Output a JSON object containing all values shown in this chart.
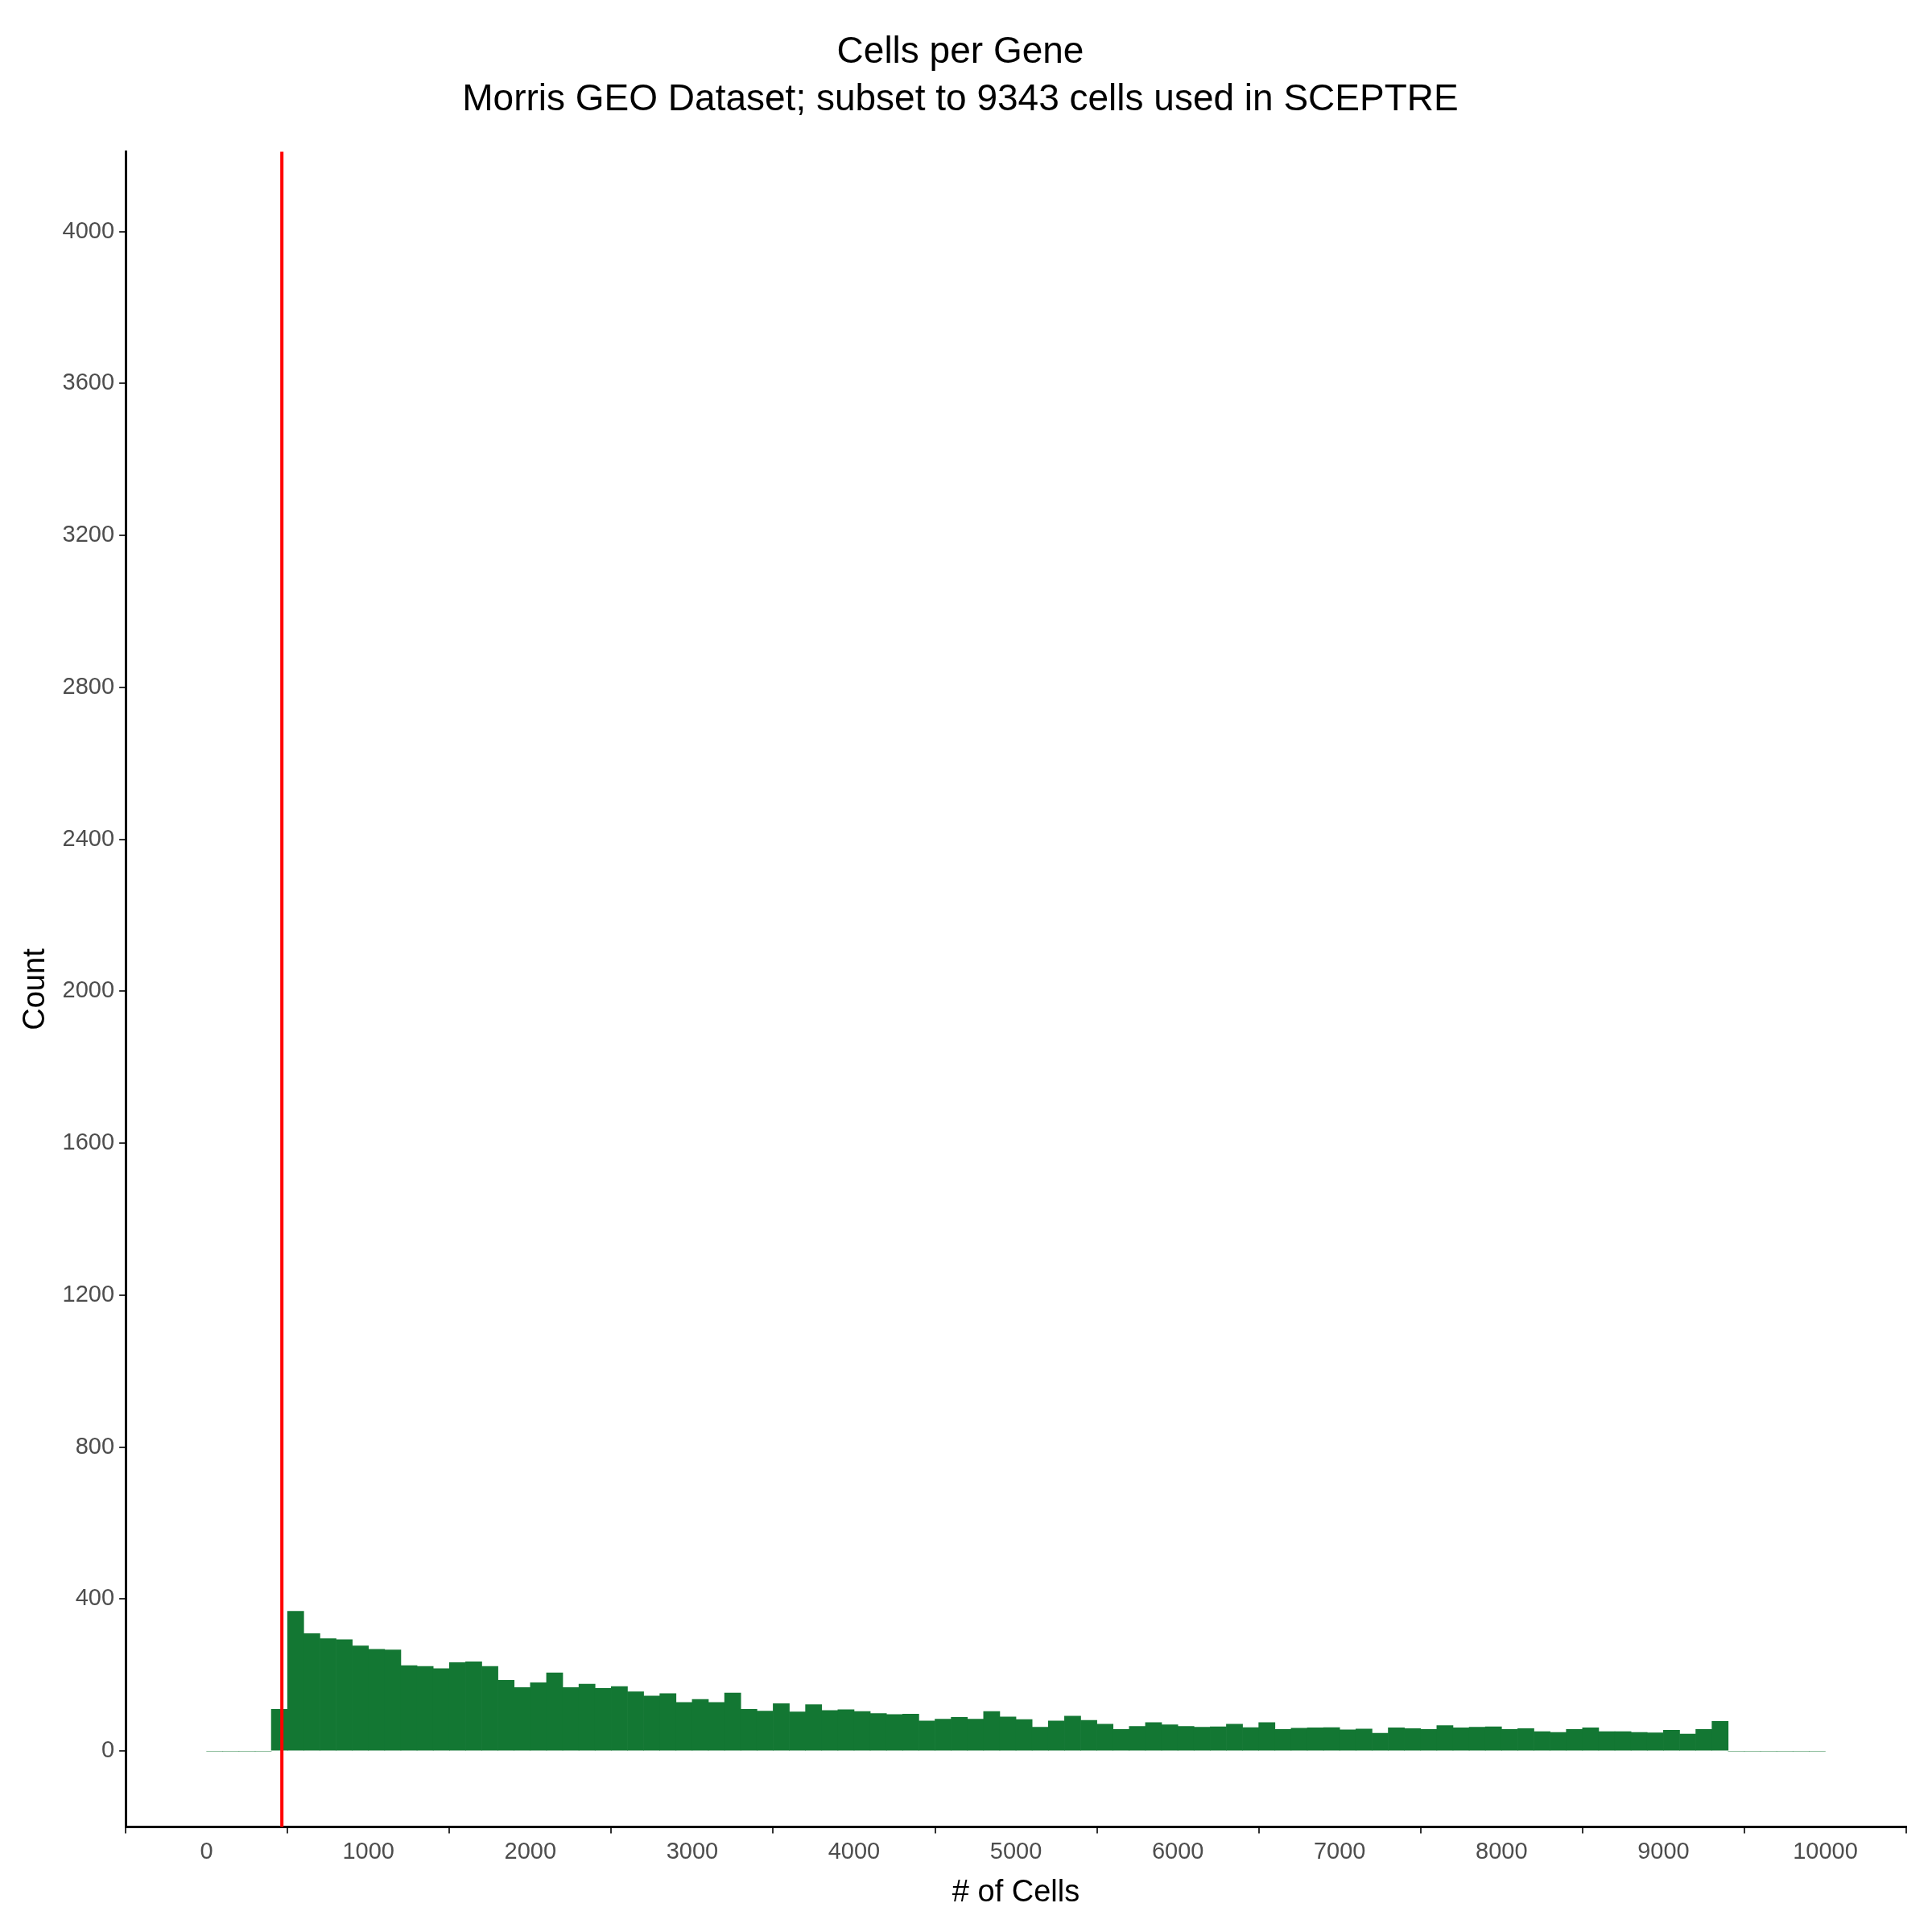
{
  "chart_data": {
    "type": "histogram",
    "title": "Cells per Gene",
    "subtitle": "Morris GEO Dataset; subset to 9343 cells used in SCEPTRE",
    "xlabel": "# of Cells",
    "ylabel": "Count",
    "bins": [
      0,
      100,
      200,
      300,
      400,
      500,
      600,
      700,
      800,
      900,
      1000,
      1100,
      1200,
      1300,
      1400,
      1500,
      1600,
      1700,
      1800,
      1900,
      2000,
      2100,
      2200,
      2300,
      2400,
      2500,
      2600,
      2700,
      2800,
      2900,
      3000,
      3100,
      3200,
      3300,
      3400,
      3500,
      3600,
      3700,
      3800,
      3900,
      4000,
      4100,
      4200,
      4300,
      4400,
      4500,
      4600,
      4700,
      4800,
      4900,
      5000,
      5100,
      5200,
      5300,
      5400,
      5500,
      5600,
      5700,
      5800,
      5900,
      6000,
      6100,
      6200,
      6300,
      6400,
      6500,
      6600,
      6700,
      6800,
      6900,
      7000,
      7100,
      7200,
      7300,
      7400,
      7500,
      7600,
      7700,
      7800,
      7900,
      8000,
      8100,
      8200,
      8300,
      8400,
      8500,
      8600,
      8700,
      8800,
      8900,
      9000,
      9100,
      9200,
      9300,
      9400,
      9500,
      9600,
      9700,
      9800,
      9900,
      10000
    ],
    "values": [
      0,
      0,
      0,
      0,
      110,
      368,
      309,
      296,
      293,
      277,
      268,
      266,
      225,
      223,
      217,
      233,
      235,
      223,
      186,
      167,
      180,
      206,
      167,
      176,
      165,
      170,
      156,
      145,
      151,
      128,
      136,
      128,
      153,
      110,
      105,
      125,
      103,
      122,
      107,
      109,
      104,
      99,
      96,
      97,
      79,
      84,
      89,
      84,
      104,
      90,
      83,
      63,
      79,
      92,
      81,
      71,
      57,
      65,
      75,
      69,
      65,
      63,
      64,
      71,
      62,
      75,
      57,
      60,
      61,
      62,
      56,
      58,
      47,
      61,
      59,
      57,
      67,
      61,
      63,
      64,
      57,
      59,
      51,
      49,
      57,
      61,
      51,
      51,
      49,
      48,
      55,
      45,
      57,
      78,
      0,
      0,
      0,
      0,
      0,
      0
    ],
    "color": "#137733",
    "xlim": [
      -500,
      10500
    ],
    "xticks": [
      0,
      1000,
      2000,
      3000,
      4000,
      5000,
      6000,
      7000,
      8000,
      9000,
      10000
    ],
    "ylim": [
      -200,
      4210
    ],
    "yticks": [
      0,
      400,
      800,
      1200,
      1600,
      2000,
      2400,
      2800,
      3200,
      3600,
      4000
    ],
    "ref_lines": [
      {
        "axis": "x",
        "value": 465,
        "color": "#ff0000"
      }
    ],
    "grid": false,
    "legend": false
  }
}
